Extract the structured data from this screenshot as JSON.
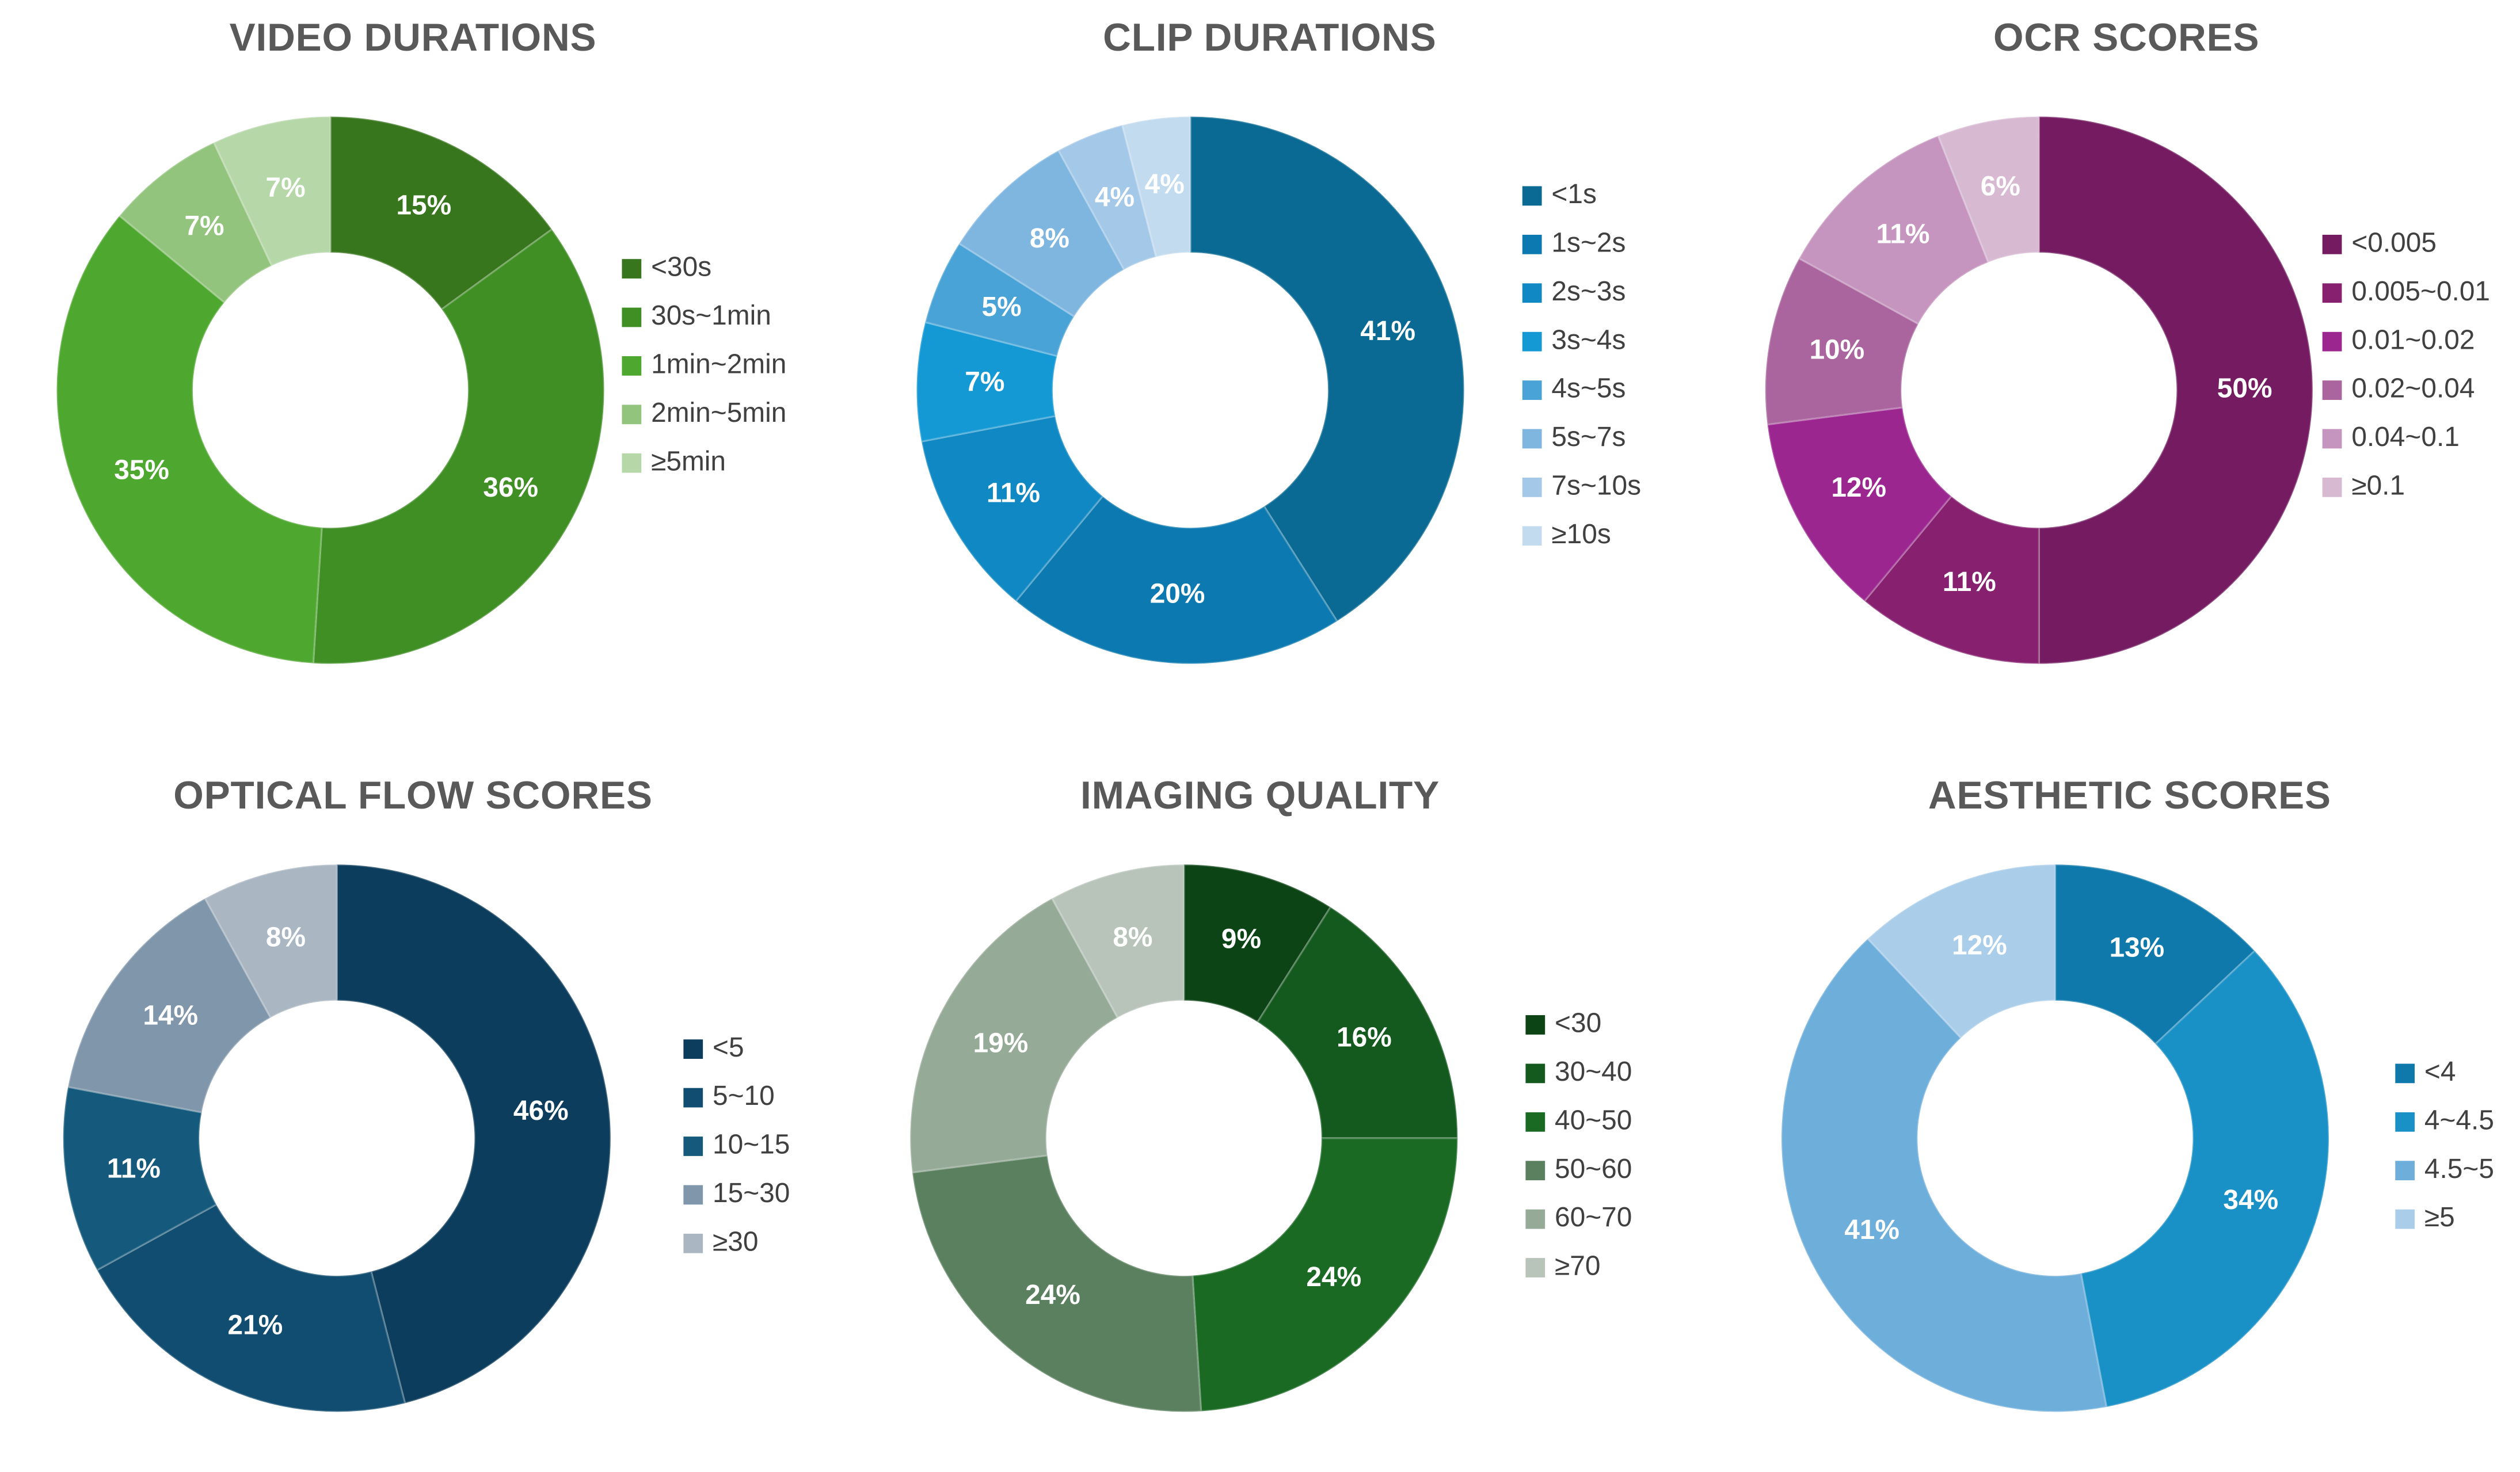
{
  "chart_data": [
    {
      "type": "pie",
      "title": "VIDEO DURATIONS",
      "categories": [
        "<30s",
        "30s~1min",
        "1min~2min",
        "2min~5min",
        "≥5min"
      ],
      "values": [
        15,
        36,
        35,
        7,
        7
      ],
      "labels": [
        "15%",
        "36%",
        "35%",
        "7%",
        "7%"
      ],
      "colors": [
        "#38761d",
        "#3f8f25",
        "#4ea72e",
        "#93c47d",
        "#b6d7a8"
      ],
      "legend": "right"
    },
    {
      "type": "pie",
      "title": "CLIP DURATIONS",
      "categories": [
        "<1s",
        "1s~2s",
        "2s~3s",
        "3s~4s",
        "4s~5s",
        "5s~7s",
        "7s~10s",
        "≥10s"
      ],
      "values": [
        41,
        20,
        11,
        7,
        5,
        8,
        4,
        4
      ],
      "labels": [
        "41%",
        "20%",
        "11%",
        "7%",
        "5%",
        "8%",
        "4%",
        "4%"
      ],
      "colors": [
        "#0a6a93",
        "#0c7ab0",
        "#0f88c3",
        "#1499d4",
        "#49a3d7",
        "#7fb6e0",
        "#a3c8e8",
        "#c3dbef"
      ],
      "legend": "right"
    },
    {
      "type": "pie",
      "title": "OCR SCORES",
      "categories": [
        "<0.005",
        "0.005~0.01",
        "0.01~0.02",
        "0.02~0.04",
        "0.04~0.1",
        "≥0.1"
      ],
      "values": [
        50,
        11,
        12,
        10,
        11,
        6
      ],
      "labels": [
        "50%",
        "11%",
        "12%",
        "10%",
        "11%",
        "6%"
      ],
      "colors": [
        "#741b61",
        "#86206f",
        "#9b2690",
        "#aa649e",
        "#c595bf",
        "#d8b9d2"
      ],
      "legend": "right"
    },
    {
      "type": "pie",
      "title": "OPTICAL FLOW SCORES",
      "categories": [
        "<5",
        "5~10",
        "10~15",
        "15~30",
        "≥30"
      ],
      "values": [
        46,
        21,
        11,
        14,
        8
      ],
      "labels": [
        "46%",
        "21%",
        "11%",
        "14%",
        "8%"
      ],
      "colors": [
        "#0c3d5c",
        "#114d70",
        "#155a7c",
        "#8096aa",
        "#aab6c2"
      ],
      "legend": "right"
    },
    {
      "type": "pie",
      "title": "IMAGING QUALITY",
      "categories": [
        "<30",
        "30~40",
        "40~50",
        "50~60",
        "60~70",
        "≥70"
      ],
      "values": [
        9,
        16,
        24,
        24,
        19,
        8
      ],
      "labels": [
        "9%",
        "16%",
        "24%",
        "24%",
        "19%",
        "8%"
      ],
      "colors": [
        "#0d4416",
        "#145a1e",
        "#1a6a24",
        "#5b805f",
        "#96aa98",
        "#b8c4ba"
      ],
      "legend": "right"
    },
    {
      "type": "pie",
      "title": "AESTHETIC SCORES",
      "categories": [
        "<4",
        "4~4.5",
        "4.5~5",
        "≥5"
      ],
      "values": [
        13,
        34,
        41,
        12
      ],
      "labels": [
        "13%",
        "34%",
        "41%",
        "12%"
      ],
      "colors": [
        "#0f79ac",
        "#1990c6",
        "#6eaedb",
        "#aacde9"
      ],
      "legend": "right"
    }
  ]
}
